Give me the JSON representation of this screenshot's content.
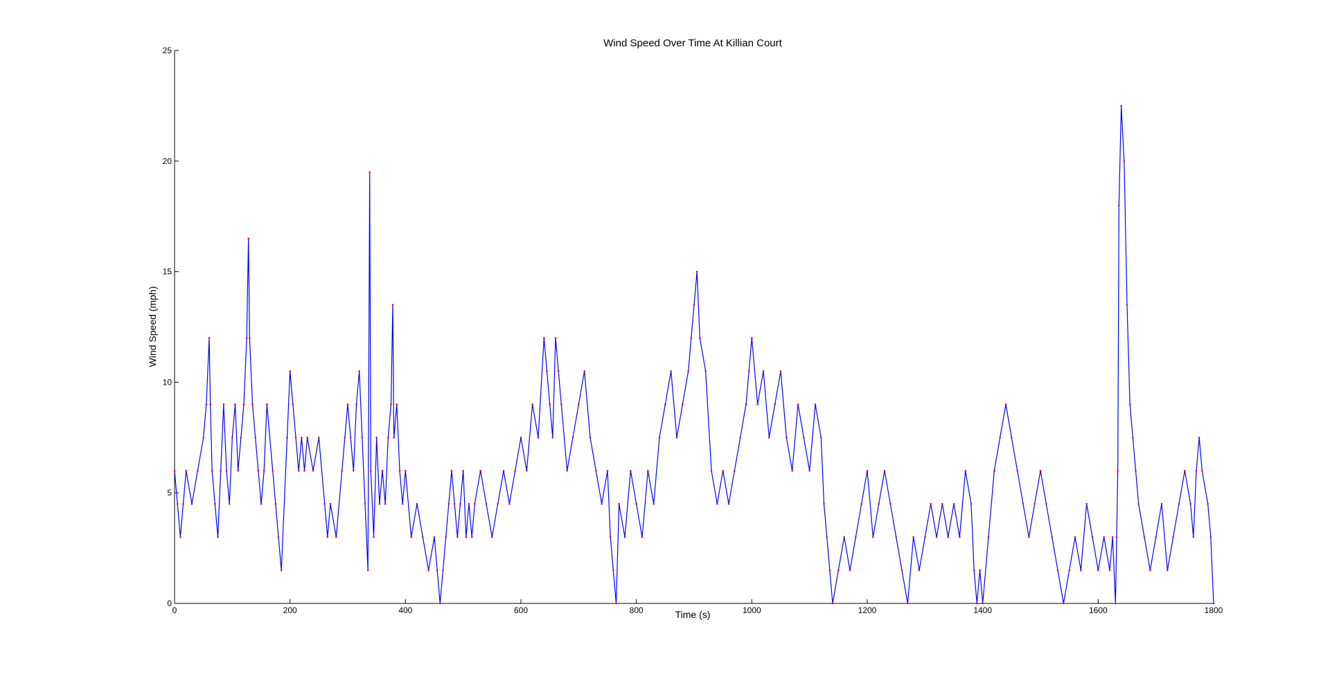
{
  "chart_data": {
    "type": "line",
    "title": "Wind Speed Over Time At Killian Court",
    "xlabel": "Time (s)",
    "ylabel": "Wind Speed (mph)",
    "xlim": [
      0,
      1800
    ],
    "ylim": [
      0,
      25
    ],
    "x_ticks": [
      0,
      200,
      400,
      600,
      800,
      1000,
      1200,
      1400,
      1600,
      1800
    ],
    "y_ticks": [
      0,
      5,
      10,
      15,
      20,
      25
    ],
    "grid": false,
    "legend": "none",
    "line_color": "#0000ff",
    "marker_color": "#ff0000",
    "series": [
      {
        "x": [
          0,
          5,
          10,
          15,
          20,
          30,
          40,
          50,
          55,
          60,
          62,
          65,
          70,
          75,
          80,
          85,
          90,
          95,
          100,
          105,
          110,
          115,
          120,
          125,
          128,
          130,
          135,
          140,
          145,
          150,
          155,
          160,
          170,
          175,
          180,
          185,
          195,
          200,
          205,
          210,
          215,
          220,
          225,
          230,
          240,
          250,
          260,
          265,
          270,
          280,
          290,
          295,
          300,
          305,
          310,
          315,
          320,
          325,
          330,
          335,
          338,
          340,
          345,
          350,
          355,
          360,
          365,
          370,
          375,
          378,
          380,
          385,
          390,
          395,
          400,
          410,
          420,
          430,
          440,
          450,
          455,
          460,
          465,
          470,
          475,
          480,
          485,
          490,
          495,
          500,
          505,
          510,
          515,
          520,
          530,
          540,
          550,
          560,
          570,
          580,
          590,
          600,
          610,
          620,
          630,
          640,
          645,
          650,
          655,
          660,
          665,
          670,
          680,
          690,
          700,
          710,
          720,
          730,
          740,
          750,
          755,
          760,
          765,
          770,
          780,
          790,
          800,
          810,
          820,
          830,
          840,
          850,
          860,
          870,
          880,
          890,
          895,
          900,
          905,
          910,
          920,
          930,
          940,
          950,
          960,
          970,
          980,
          990,
          995,
          1000,
          1010,
          1020,
          1030,
          1040,
          1050,
          1060,
          1070,
          1080,
          1090,
          1100,
          1110,
          1120,
          1125,
          1130,
          1135,
          1140,
          1150,
          1160,
          1170,
          1180,
          1190,
          1200,
          1210,
          1220,
          1230,
          1240,
          1250,
          1260,
          1270,
          1280,
          1290,
          1300,
          1310,
          1320,
          1330,
          1340,
          1350,
          1360,
          1370,
          1380,
          1385,
          1390,
          1395,
          1400,
          1410,
          1420,
          1430,
          1440,
          1450,
          1460,
          1470,
          1480,
          1490,
          1500,
          1510,
          1520,
          1530,
          1540,
          1550,
          1560,
          1570,
          1580,
          1590,
          1600,
          1610,
          1620,
          1625,
          1630,
          1632,
          1634,
          1636,
          1640,
          1645,
          1650,
          1655,
          1660,
          1665,
          1670,
          1680,
          1690,
          1700,
          1710,
          1720,
          1730,
          1740,
          1750,
          1760,
          1765,
          1770,
          1775,
          1780,
          1790,
          1795,
          1800
        ],
        "y": [
          6,
          4.5,
          3,
          4.5,
          6,
          4.5,
          6,
          7.5,
          9,
          12,
          9,
          6,
          4.5,
          3,
          6,
          9,
          6,
          4.5,
          7.5,
          9,
          6,
          7.5,
          9,
          12,
          16.5,
          12,
          9,
          7.5,
          6,
          4.5,
          6,
          9,
          6,
          4.5,
          3,
          1.5,
          7.5,
          10.5,
          9,
          7.5,
          6,
          7.5,
          6,
          7.5,
          6,
          7.5,
          4.5,
          3,
          4.5,
          3,
          6,
          7.5,
          9,
          7.5,
          6,
          9,
          10.5,
          7.5,
          4.5,
          1.5,
          19.5,
          6,
          3,
          7.5,
          4.5,
          6,
          4.5,
          7.5,
          9,
          13.5,
          7.5,
          9,
          6,
          4.5,
          6,
          3,
          4.5,
          3,
          1.5,
          3,
          1.5,
          0,
          1.5,
          3,
          4.5,
          6,
          4.5,
          3,
          4.5,
          6,
          3,
          4.5,
          3,
          4.5,
          6,
          4.5,
          3,
          4.5,
          6,
          4.5,
          6,
          7.5,
          6,
          9,
          7.5,
          12,
          10.5,
          9,
          7.5,
          12,
          10.5,
          9,
          6,
          7.5,
          9,
          10.5,
          7.5,
          6,
          4.5,
          6,
          3,
          1.5,
          0,
          4.5,
          3,
          6,
          4.5,
          3,
          6,
          4.5,
          7.5,
          9,
          10.5,
          7.5,
          9,
          10.5,
          12,
          13.5,
          15,
          12,
          10.5,
          6,
          4.5,
          6,
          4.5,
          6,
          7.5,
          9,
          10.5,
          12,
          9,
          10.5,
          7.5,
          9,
          10.5,
          7.5,
          6,
          9,
          7.5,
          6,
          9,
          7.5,
          4.5,
          3,
          1.5,
          0,
          1.5,
          3,
          1.5,
          3,
          4.5,
          6,
          3,
          4.5,
          6,
          4.5,
          3,
          1.5,
          0,
          3,
          1.5,
          3,
          4.5,
          3,
          4.5,
          3,
          4.5,
          3,
          6,
          4.5,
          1.5,
          0,
          1.5,
          0,
          3,
          6,
          7.5,
          9,
          7.5,
          6,
          4.5,
          3,
          4.5,
          6,
          4.5,
          3,
          1.5,
          0,
          1.5,
          3,
          1.5,
          4.5,
          3,
          1.5,
          3,
          1.5,
          3,
          0,
          3,
          6,
          18,
          22.5,
          20,
          13.5,
          9,
          7.5,
          6,
          4.5,
          3,
          1.5,
          3,
          4.5,
          1.5,
          3,
          4.5,
          6,
          4.5,
          3,
          6,
          7.5,
          6,
          4.5,
          3,
          0
        ]
      }
    ]
  }
}
